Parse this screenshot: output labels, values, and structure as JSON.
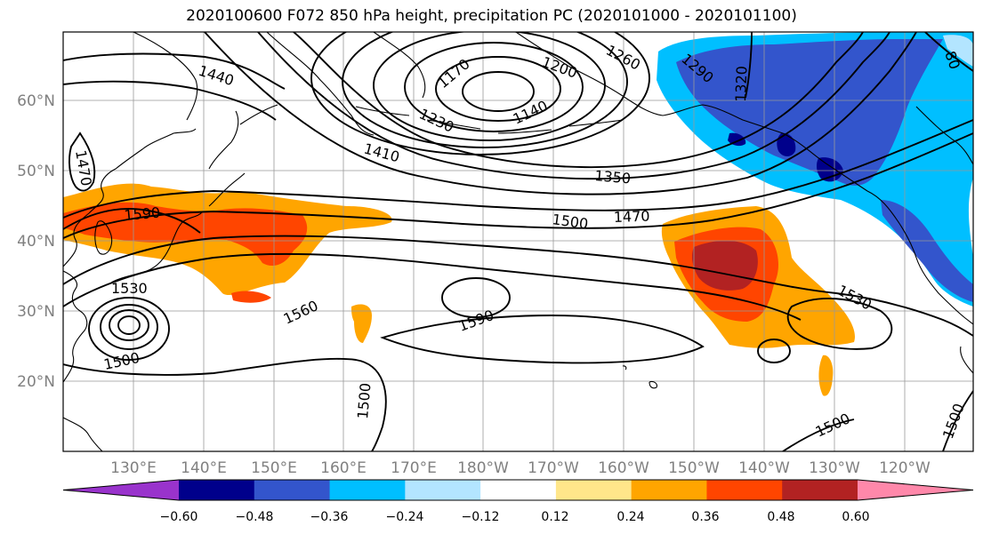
{
  "title": "2020100600 F072 850 hPa height, precipitation PC (2020101000 - 2020101100)",
  "axes": {
    "lat_labels": [
      "60°N",
      "50°N",
      "40°N",
      "30°N",
      "20°N"
    ],
    "lon_labels": [
      "130°E",
      "140°E",
      "150°E",
      "160°E",
      "170°E",
      "180°W",
      "170°W",
      "160°W",
      "150°W",
      "140°W",
      "130°W",
      "120°W"
    ]
  },
  "colorbar": {
    "tick_labels": [
      "−0.60",
      "−0.48",
      "−0.36",
      "−0.24",
      "−0.12",
      "0.12",
      "0.24",
      "0.36",
      "0.48",
      "0.60"
    ],
    "colors": [
      "#9933cc",
      "#00008b",
      "#3355cc",
      "#00bfff",
      "#b3e5ff",
      "#ffffff",
      "#ffe68a",
      "#ffa500",
      "#ff4500",
      "#b22222",
      "#ff88aa"
    ]
  },
  "contour_labels": [
    "1440",
    "1470",
    "1590",
    "1170",
    "1200",
    "1260",
    "1290",
    "1320",
    "1140",
    "1230",
    "1410",
    "1350",
    "1470",
    "1500",
    "1530",
    "1560",
    "1590",
    "1500",
    "1500",
    "1500",
    "1500",
    "1530",
    "80"
  ],
  "colors": {
    "land_outline": "#000000",
    "contour": "#000000",
    "grid": "#999999"
  }
}
